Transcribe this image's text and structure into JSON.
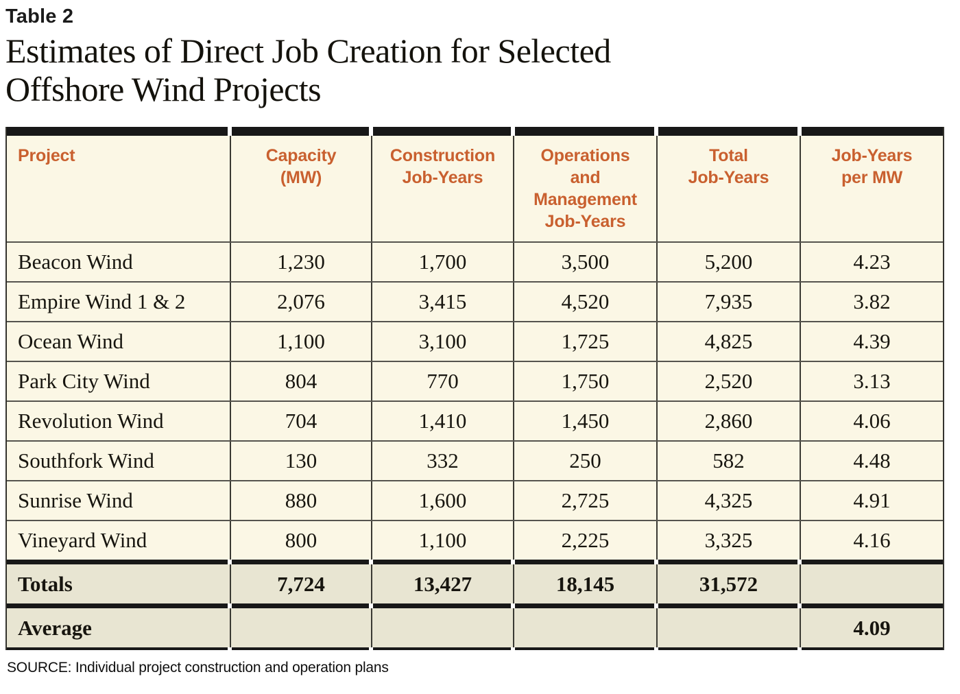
{
  "table_label": "Table 2",
  "title": "Estimates of Direct Job Creation for Selected\nOffshore Wind Projects",
  "source": "SOURCE: Individual project construction and operation plans",
  "colors": {
    "accent_orange": "#C9602F",
    "cream_background": "#FBF7E5",
    "summary_row_background": "#E8E5D2",
    "rule_black": "#181818"
  },
  "table": {
    "columns": [
      "Project",
      "Capacity\n(MW)",
      "Construction\nJob-Years",
      "Operations\nand\nManagement\nJob-Years",
      "Total\nJob-Years",
      "Job-Years\nper MW"
    ],
    "rows": [
      {
        "project": "Beacon Wind",
        "capacity": "1,230",
        "construction": "1,700",
        "operations": "3,500",
        "total": "5,200",
        "per_mw": "4.23"
      },
      {
        "project": "Empire Wind 1 & 2",
        "capacity": "2,076",
        "construction": "3,415",
        "operations": "4,520",
        "total": "7,935",
        "per_mw": "3.82"
      },
      {
        "project": "Ocean Wind",
        "capacity": "1,100",
        "construction": "3,100",
        "operations": "1,725",
        "total": "4,825",
        "per_mw": "4.39"
      },
      {
        "project": "Park City Wind",
        "capacity": "804",
        "construction": "770",
        "operations": "1,750",
        "total": "2,520",
        "per_mw": "3.13"
      },
      {
        "project": "Revolution Wind",
        "capacity": "704",
        "construction": "1,410",
        "operations": "1,450",
        "total": "2,860",
        "per_mw": "4.06"
      },
      {
        "project": "Southfork Wind",
        "capacity": "130",
        "construction": "332",
        "operations": "250",
        "total": "582",
        "per_mw": "4.48"
      },
      {
        "project": "Sunrise Wind",
        "capacity": "880",
        "construction": "1,600",
        "operations": "2,725",
        "total": "4,325",
        "per_mw": "4.91"
      },
      {
        "project": "Vineyard Wind",
        "capacity": "800",
        "construction": "1,100",
        "operations": "2,225",
        "total": "3,325",
        "per_mw": "4.16"
      }
    ],
    "totals_row": {
      "label": "Totals",
      "capacity": "7,724",
      "construction": "13,427",
      "operations": "18,145",
      "total": "31,572",
      "per_mw": ""
    },
    "average_row": {
      "label": "Average",
      "capacity": "",
      "construction": "",
      "operations": "",
      "total": "",
      "per_mw": "4.09"
    }
  }
}
